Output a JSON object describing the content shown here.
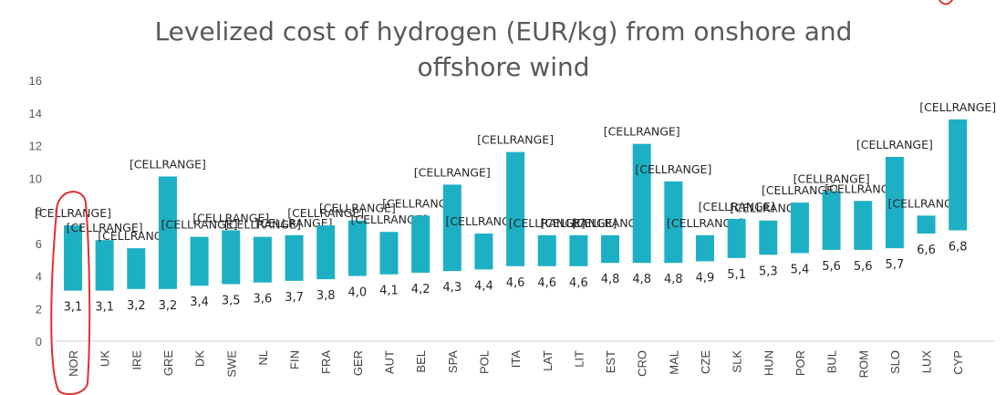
{
  "chart_data": {
    "type": "bar",
    "title_lines": [
      "Levelized cost of hydrogen (EUR/kg) from onshore and",
      "offshore wind"
    ],
    "categories": [
      "NOR",
      "UK",
      "IRE",
      "GRE",
      "DK",
      "SWE",
      "NL",
      "FIN",
      "FRA",
      "GER",
      "AUT",
      "BEL",
      "SPA",
      "POL",
      "ITA",
      "LAT",
      "LIT",
      "EST",
      "CRO",
      "MAL",
      "CZE",
      "SLK",
      "HUN",
      "POR",
      "BUL",
      "ROM",
      "SLO",
      "LUX",
      "CYP"
    ],
    "low_values": [
      3.1,
      3.1,
      3.2,
      3.2,
      3.4,
      3.5,
      3.6,
      3.7,
      3.8,
      4.0,
      4.1,
      4.2,
      4.3,
      4.4,
      4.6,
      4.6,
      4.6,
      4.8,
      4.8,
      4.8,
      4.9,
      5.1,
      5.3,
      5.4,
      5.6,
      5.6,
      5.7,
      6.6,
      6.8
    ],
    "low_labels": [
      "3,1",
      "3,1",
      "3,2",
      "3,2",
      "3,4",
      "3,5",
      "3,6",
      "3,7",
      "3,8",
      "4,0",
      "4,1",
      "4,2",
      "4,3",
      "4,4",
      "4,6",
      "4,6",
      "4,6",
      "4,8",
      "4,8",
      "4,8",
      "4,9",
      "5,1",
      "5,3",
      "5,4",
      "5,6",
      "5,6",
      "5,7",
      "6,6",
      "6,8"
    ],
    "high_values": [
      7.1,
      6.2,
      5.7,
      10.1,
      6.4,
      6.8,
      6.4,
      6.5,
      7.1,
      7.4,
      6.7,
      7.7,
      9.6,
      6.6,
      11.6,
      6.5,
      6.5,
      6.5,
      12.1,
      9.8,
      6.5,
      7.5,
      7.4,
      8.5,
      9.2,
      8.6,
      11.3,
      7.7,
      13.6
    ],
    "range_label": "[CELLRANGE]",
    "ylim": [
      0,
      16
    ],
    "yticks": [
      0,
      2,
      4,
      6,
      8,
      10,
      12,
      14,
      16
    ],
    "grid": false,
    "legend": "none",
    "colors": {
      "bar": "#1DB0C4",
      "annotation": "#E03030"
    }
  }
}
